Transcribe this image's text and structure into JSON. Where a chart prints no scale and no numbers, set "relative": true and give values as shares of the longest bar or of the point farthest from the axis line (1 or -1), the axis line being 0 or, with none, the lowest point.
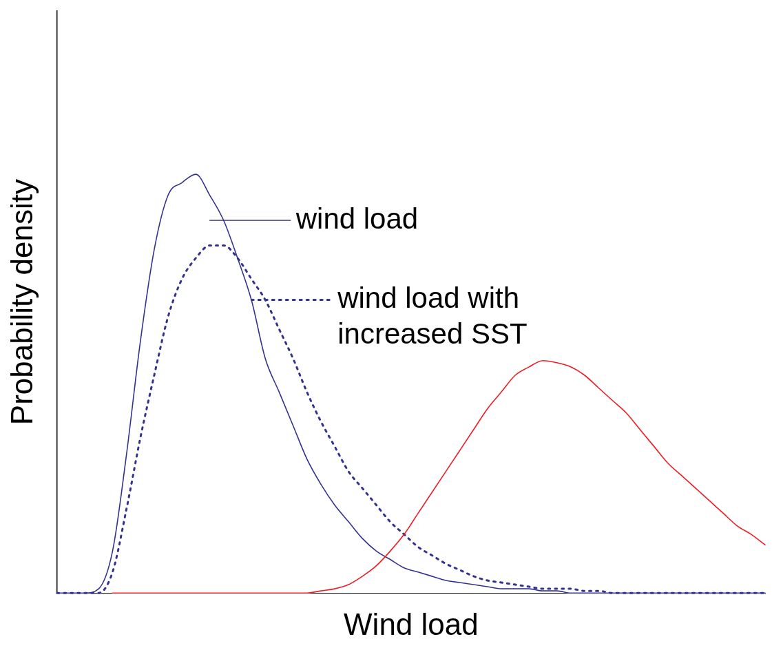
{
  "chart_data": {
    "type": "line",
    "relative": true,
    "xlabel": "Wind load",
    "ylabel": "Probability density",
    "legend": "top",
    "marker": "none",
    "categories": [
      null,
      null,
      null,
      null,
      null,
      null,
      null,
      null,
      null,
      null,
      null,
      null,
      null,
      null,
      null,
      null,
      null,
      null,
      null,
      null,
      null,
      null,
      null,
      null,
      null,
      null,
      null,
      null,
      null,
      null,
      null,
      null,
      null,
      null,
      null,
      null,
      null,
      null,
      null,
      null,
      null,
      null,
      null,
      null,
      null,
      null,
      null,
      null,
      null,
      null,
      null,
      null
    ],
    "series": [
      {
        "name": "wind load",
        "color": "#33338f",
        "line_style": "solid",
        "values": [
          0,
          0,
          0,
          0.01,
          0.1,
          0.33,
          0.6,
          0.82,
          0.95,
          0.98,
          1,
          0.95,
          0.89,
          0.8,
          0.7,
          0.56,
          0.48,
          0.4,
          0.32,
          0.26,
          0.21,
          0.17,
          0.13,
          0.1,
          0.08,
          0.06,
          0.05,
          0.04,
          0.03,
          0.025,
          0.02,
          0.015,
          0.01,
          0.01,
          0.01,
          0.005,
          0.005,
          0,
          0,
          0,
          0,
          0,
          0,
          0,
          0,
          0,
          0,
          0,
          0,
          0,
          0,
          0
        ]
      },
      {
        "name": "wind load with increased SST",
        "color": "#33338f",
        "line_style": "dotted",
        "values": [
          0,
          0,
          0,
          0,
          0.05,
          0.2,
          0.37,
          0.52,
          0.66,
          0.75,
          0.8,
          0.83,
          0.83,
          0.8,
          0.75,
          0.7,
          0.63,
          0.56,
          0.48,
          0.41,
          0.35,
          0.29,
          0.25,
          0.21,
          0.17,
          0.14,
          0.11,
          0.09,
          0.07,
          0.055,
          0.04,
          0.03,
          0.025,
          0.02,
          0.015,
          0.01,
          0.01,
          0.01,
          0.005,
          0.005,
          0,
          0,
          0,
          0,
          0,
          0,
          0,
          0,
          0,
          0,
          0,
          0
        ]
      },
      {
        "color": "#ee1c24",
        "line_style": "solid",
        "values": [
          null,
          null,
          null,
          null,
          0,
          0,
          0,
          0,
          0,
          0,
          0,
          0,
          0,
          0,
          0,
          0,
          0,
          0,
          0,
          0.005,
          0.01,
          0.02,
          0.04,
          0.065,
          0.1,
          0.14,
          0.19,
          0.24,
          0.29,
          0.34,
          0.39,
          0.44,
          0.48,
          0.52,
          0.54,
          0.555,
          0.55,
          0.54,
          0.52,
          0.49,
          0.46,
          0.43,
          0.39,
          0.35,
          0.31,
          0.28,
          0.25,
          0.22,
          0.19,
          0.16,
          0.14,
          0.115
        ]
      }
    ]
  }
}
